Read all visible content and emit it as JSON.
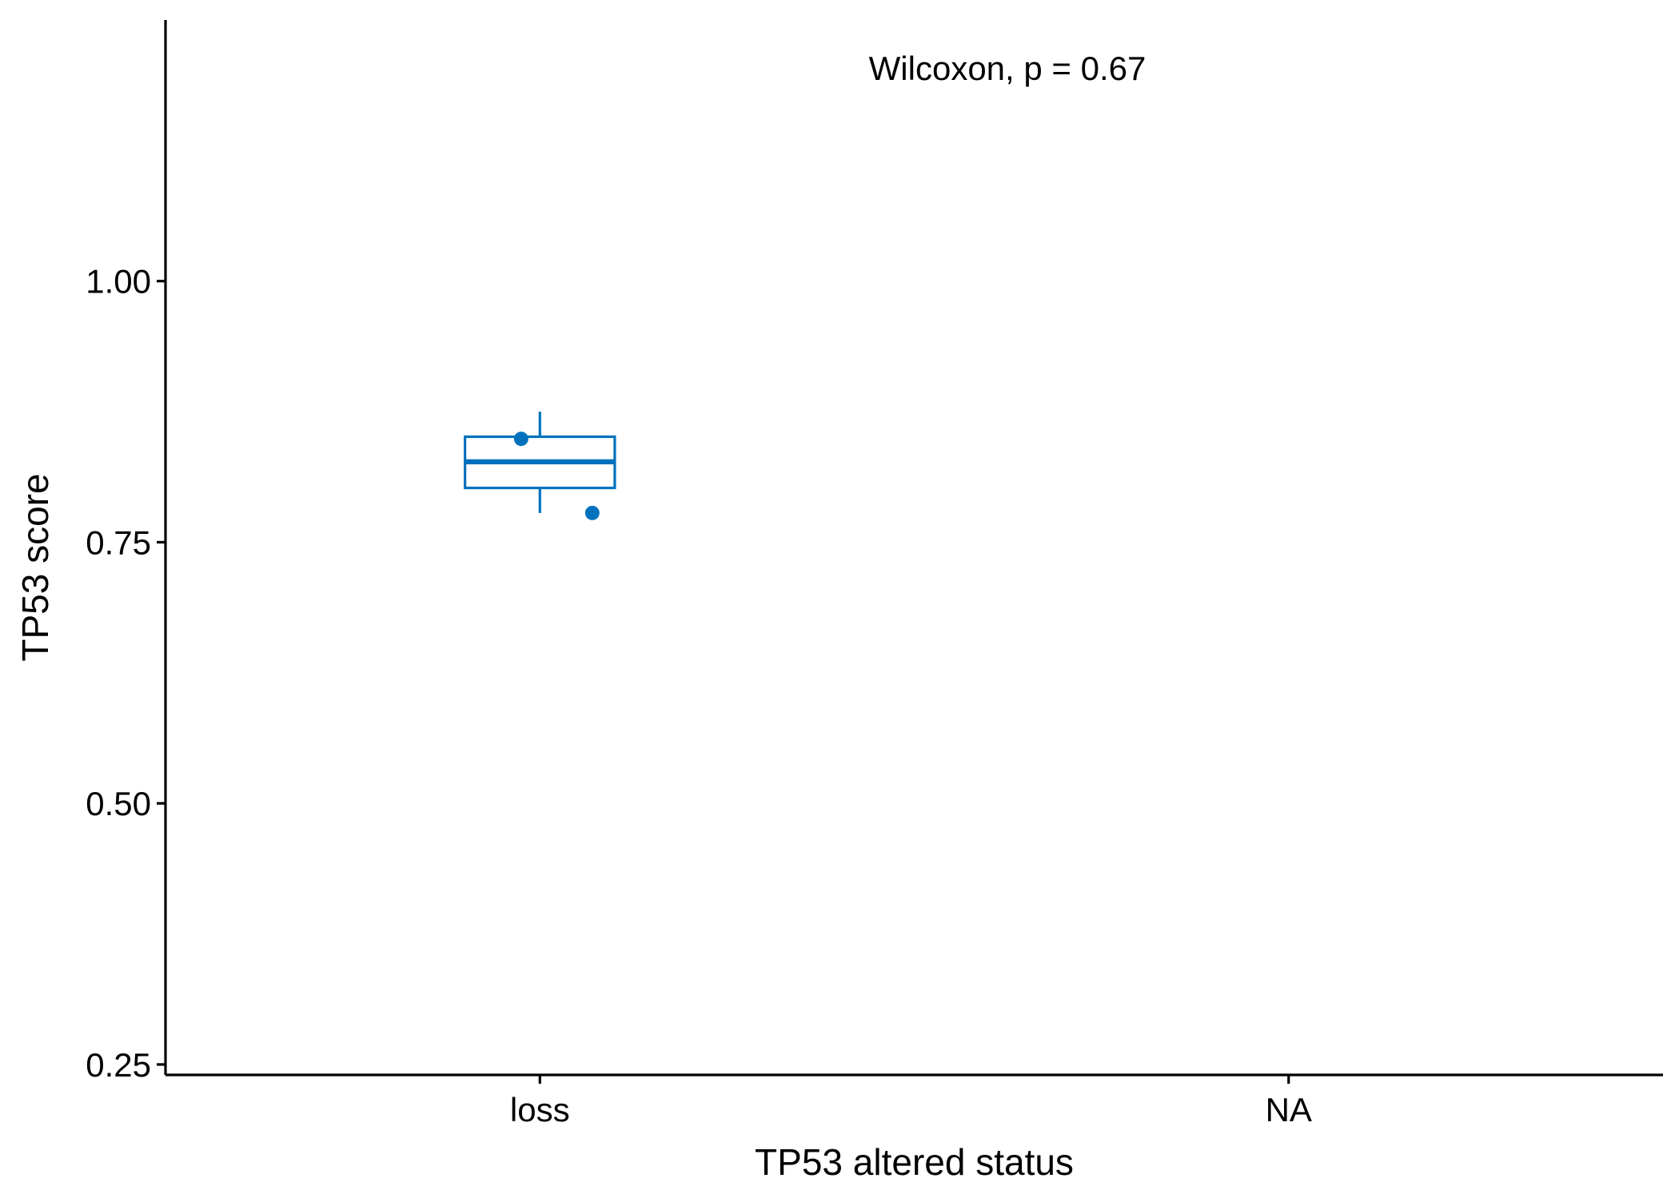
{
  "chart_data": {
    "type": "box",
    "xlabel": "TP53 altered status",
    "ylabel": "TP53 score",
    "categories": [
      "loss",
      "NA"
    ],
    "ylim": [
      0.24,
      1.25
    ],
    "yticks": [
      0.25,
      0.5,
      0.75,
      1.0
    ],
    "ytick_labels": [
      "0.25",
      "0.50",
      "0.75",
      "1.00"
    ],
    "grid": false,
    "legend": "none",
    "color": "#0072BD",
    "annotation": "Wilcoxon, p = 0.67",
    "boxes": [
      {
        "category": "loss",
        "whisker_low": 0.778,
        "q1": 0.802,
        "median": 0.827,
        "q3": 0.851,
        "whisker_high": 0.875
      }
    ],
    "points": [
      {
        "category": "loss",
        "y": 0.849,
        "jitter": -0.25
      },
      {
        "category": "loss",
        "y": 0.778,
        "jitter": 0.7
      }
    ]
  }
}
